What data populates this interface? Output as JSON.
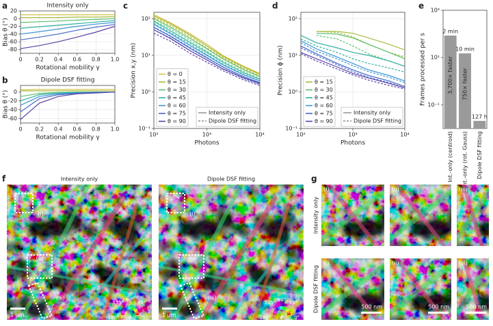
{
  "panel_labels": [
    "a",
    "b",
    "c",
    "d",
    "e",
    "f",
    "g"
  ],
  "chart_data": [
    {
      "type": "line",
      "title": "Intensity only",
      "x_label": "Rotational mobility γ",
      "y_label": "Bias θ (°)",
      "x": [
        0,
        0.2,
        0.4,
        0.6,
        0.8,
        1
      ],
      "xlim": [
        0,
        1
      ],
      "ylim": [
        -90,
        20
      ],
      "xticks": [
        0,
        0.2,
        0.4,
        0.6,
        0.8,
        {
          "value": 1,
          "label": "1.0"
        }
      ],
      "yticks": [
        -80,
        -60,
        -40,
        -20,
        0,
        20
      ],
      "grid": true,
      "log_x": false,
      "log_y": false,
      "series": [
        {
          "color": "#d4c24a",
          "values": [
            10,
            10,
            10,
            10,
            10,
            10
          ]
        },
        {
          "color": "#a9bb3c",
          "values": [
            3,
            3,
            3,
            4,
            4,
            5
          ]
        },
        {
          "color": "#5bbf6e",
          "values": [
            -10,
            -8,
            -6,
            -4,
            -2,
            0
          ]
        },
        {
          "color": "#2eb0a0",
          "values": [
            -25,
            -21,
            -17,
            -13,
            -9,
            -5
          ]
        },
        {
          "color": "#3b94d4",
          "values": [
            -40,
            -34,
            -27,
            -20,
            -14,
            -10
          ]
        },
        {
          "color": "#4468c8",
          "values": [
            -55,
            -48,
            -40,
            -30,
            -22,
            -15
          ]
        },
        {
          "color": "#5a3fa6",
          "values": [
            -78,
            -70,
            -60,
            -48,
            -35,
            -20
          ]
        }
      ]
    },
    {
      "type": "line",
      "title": "Dipole DSF fitting",
      "x_label": "Rotational mobility γ",
      "y_label": "Bias θ (°)",
      "x": [
        0,
        0.2,
        0.4,
        0.6,
        0.8,
        1
      ],
      "xlim": [
        0,
        1
      ],
      "ylim": [
        -70,
        15
      ],
      "xticks": [
        0,
        0.2,
        0.4,
        0.6,
        0.8,
        {
          "value": 1,
          "label": "1.0"
        }
      ],
      "yticks": [
        -60,
        -40,
        -20,
        0
      ],
      "grid": true,
      "log_x": false,
      "log_y": false,
      "series": [
        {
          "color": "#d4c24a",
          "values": [
            5,
            6,
            6,
            6,
            6,
            6
          ]
        },
        {
          "color": "#a9bb3c",
          "values": [
            3,
            3,
            3,
            3,
            3,
            3
          ]
        },
        {
          "color": "#5bbf6e",
          "values": [
            -10,
            -3,
            -1,
            0,
            0,
            0
          ]
        },
        {
          "color": "#2eb0a0",
          "values": [
            -20,
            -6,
            -2,
            -1,
            0,
            0
          ]
        },
        {
          "color": "#3b94d4",
          "values": [
            -30,
            -10,
            -4,
            -2,
            -1,
            0
          ]
        },
        {
          "color": "#4468c8",
          "values": [
            -45,
            -15,
            -6,
            -3,
            -1,
            0
          ]
        },
        {
          "color": "#5a3fa6",
          "values": [
            -62,
            -25,
            -10,
            -4,
            -2,
            0
          ]
        }
      ]
    },
    {
      "type": "line",
      "x_label": "Photons",
      "y_label": "Precision x,y (nm)",
      "x": [
        100,
        200,
        500,
        1000,
        2000,
        5000,
        10000
      ],
      "xlim": [
        100,
        10000
      ],
      "ylim": [
        0.1,
        150
      ],
      "log_x": true,
      "log_y": true,
      "grid": true,
      "xticks": [
        {
          "value": 100,
          "label": "10²"
        },
        {
          "value": 1000,
          "label": "10³"
        },
        {
          "value": 10000,
          "label": "10⁴"
        }
      ],
      "yticks": [
        {
          "value": 0.1,
          "label": "10⁻¹"
        },
        {
          "value": 1,
          "label": "10⁰"
        },
        {
          "value": 10,
          "label": "10¹"
        },
        {
          "value": 100,
          "label": "10²"
        }
      ],
      "legend": "lower left",
      "style_legend": {
        "position": "lower right",
        "entries": [
          {
            "name": "Intensity only",
            "dashed": false
          },
          {
            "name": "Dipole DSF fitting",
            "dashed": true
          }
        ]
      },
      "series": [
        {
          "name": "θ = 0",
          "color": "#d4c24a",
          "values": [
            130,
            80,
            38,
            20,
            10,
            5,
            3.2
          ],
          "dsf_values": [
            115,
            72,
            34,
            18,
            9,
            4.6,
            2.9
          ]
        },
        {
          "name": "θ = 15",
          "color": "#a9bb3c",
          "values": [
            120,
            75,
            35,
            18,
            9.5,
            4.8,
            3
          ],
          "dsf_values": [
            105,
            66,
            31,
            16,
            8.5,
            4.3,
            2.7
          ]
        },
        {
          "name": "θ = 30",
          "color": "#5bbf6e",
          "values": [
            100,
            60,
            28,
            15,
            8,
            4,
            2.6
          ],
          "dsf_values": [
            88,
            54,
            25,
            13,
            7,
            3.6,
            2.3
          ]
        },
        {
          "name": "θ = 45",
          "color": "#2eb0a0",
          "values": [
            85,
            48,
            22,
            12,
            6.5,
            3.3,
            2.2
          ],
          "dsf_values": [
            75,
            43,
            20,
            10.5,
            5.8,
            3,
            2
          ]
        },
        {
          "name": "θ = 60",
          "color": "#3b94d4",
          "values": [
            70,
            40,
            18,
            10,
            5.5,
            2.9,
            2
          ],
          "dsf_values": [
            60,
            35,
            16,
            8.8,
            4.9,
            2.6,
            1.8
          ]
        },
        {
          "name": "θ = 75",
          "color": "#4468c8",
          "values": [
            58,
            34,
            15,
            8.5,
            4.8,
            2.6,
            1.8
          ],
          "dsf_values": [
            50,
            29,
            13,
            7.5,
            4.2,
            2.3,
            1.6
          ]
        },
        {
          "name": "θ = 90",
          "color": "#5a3fa6",
          "values": [
            50,
            30,
            13,
            7.5,
            4.3,
            2.4,
            1.7
          ],
          "dsf_values": [
            40,
            25,
            11,
            6.5,
            3.8,
            2.1,
            1.5
          ]
        }
      ]
    },
    {
      "type": "line",
      "x_label": "Photons",
      "y_label": "Precision ϕ (nm)",
      "x": [
        100,
        200,
        500,
        1000,
        2000,
        5000,
        10000
      ],
      "xlim": [
        100,
        10000
      ],
      "ylim": [
        0.1,
        150
      ],
      "log_x": true,
      "log_y": true,
      "grid": true,
      "xticks": [
        {
          "value": 100,
          "label": "10²"
        },
        {
          "value": 1000,
          "label": "10³"
        },
        {
          "value": 10000,
          "label": "10⁴"
        }
      ],
      "yticks": [
        {
          "value": 0.1,
          "label": "10⁻¹"
        },
        {
          "value": 1,
          "label": "10⁰"
        },
        {
          "value": 10,
          "label": "10¹"
        },
        {
          "value": 100,
          "label": "10²"
        }
      ],
      "legend": "lower left",
      "style_legend": {
        "position": "lower right",
        "entries": [
          {
            "name": "Intensity only",
            "dashed": false
          },
          {
            "name": "Dipole DSF fitting",
            "dashed": true
          }
        ]
      },
      "series": [
        {
          "name": "θ = 15",
          "color": "#a9bb3c",
          "values": [
            null,
            45,
            45,
            40,
            30,
            20,
            14
          ],
          "dsf_values": [
            null,
            45,
            42,
            32,
            20,
            12,
            9
          ]
        },
        {
          "name": "θ = 30",
          "color": "#5bbf6e",
          "values": [
            null,
            40,
            38,
            30,
            20,
            12,
            8
          ],
          "dsf_values": [
            null,
            35,
            28,
            18,
            11,
            7,
            5
          ]
        },
        {
          "name": "θ = 45",
          "color": "#2eb0a0",
          "values": [
            35,
            22,
            16,
            12,
            10,
            7,
            5
          ],
          "dsf_values": [
            28,
            18,
            12,
            8,
            6,
            4.5,
            3.5
          ]
        },
        {
          "name": "θ = 60",
          "color": "#3b94d4",
          "values": [
            25,
            15,
            9,
            6,
            4,
            2.8,
            2
          ],
          "dsf_values": [
            22,
            13,
            8,
            5.2,
            3.6,
            2.5,
            1.8
          ]
        },
        {
          "name": "θ = 75",
          "color": "#4468c8",
          "values": [
            18,
            11,
            6,
            4,
            2.8,
            2,
            1.4
          ],
          "dsf_values": [
            16,
            10,
            5.5,
            3.6,
            2.5,
            1.8,
            1.3
          ]
        },
        {
          "name": "θ = 90",
          "color": "#5a3fa6",
          "values": [
            12,
            8,
            4.8,
            3.2,
            2.4,
            1.7,
            1.3
          ],
          "dsf_values": [
            11,
            7,
            4.2,
            2.9,
            2.1,
            1.5,
            1.2
          ]
        }
      ]
    },
    {
      "type": "bar",
      "y_label": "Frames processed per s",
      "log_y": true,
      "color": "#9a9a9a",
      "categories": [
        "Int.-only (centroid)",
        "Int.-only (rot. Gauss)",
        "Dipole DSF fitting"
      ],
      "values": [
        85,
        15,
        0.021
      ],
      "time_labels": [
        "2 min",
        "10 min",
        "127 h"
      ],
      "speedup_labels": [
        "3,700× faster",
        "750× faster",
        null
      ],
      "ylim": [
        0.01,
        1000
      ],
      "yticks": [
        {
          "value": 0.1,
          "label": "10⁻¹"
        },
        {
          "value": 10,
          "label": "10¹"
        },
        {
          "value": 1000,
          "label": "10³"
        }
      ]
    }
  ],
  "image_panels": {
    "f": {
      "titles": [
        "Intensity only",
        "Dipole DSF fitting"
      ],
      "regions": [
        "(i)",
        "(ii)",
        "(iii)"
      ],
      "scale_bar": "1 µm",
      "wheel": {
        "labels": [
          "135°",
          "90°",
          "45°",
          "180°",
          "0°"
        ],
        "symbol": "ϕ"
      }
    },
    "g": {
      "rows": [
        "Intensity only",
        "Dipole DSF fitting"
      ],
      "columns": [
        "(i)",
        "(ii)",
        "(iii)"
      ],
      "scale_bar": "500 nm"
    }
  }
}
